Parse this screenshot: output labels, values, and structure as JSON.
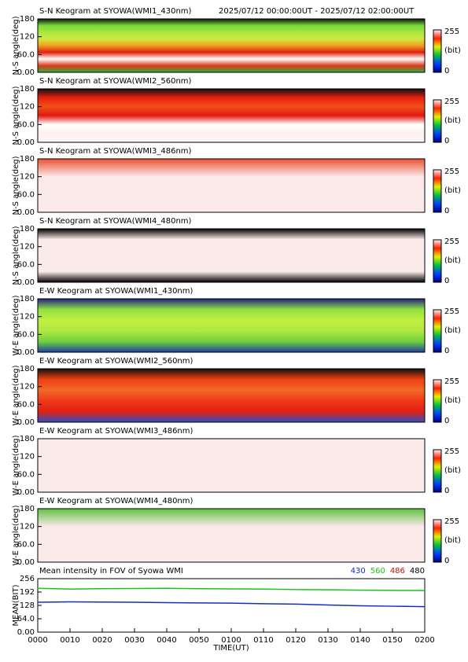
{
  "header": {
    "range": "2025/07/12 00:00:00UT - 2025/07/12 02:00:00UT"
  },
  "chart_data": [
    {
      "type": "keogram",
      "title": "S-N Keogram at SYOWA(WMI1_430nm)",
      "y_label": "N-S angle(deg)",
      "ylim": [
        0,
        180
      ],
      "yticks": [
        {
          "value": 0,
          "label": "0.00"
        },
        {
          "value": 60,
          "label": "60.0"
        },
        120,
        180
      ],
      "gradient": [
        "#101010",
        "#78d838",
        "#a8e840",
        "#d0e840",
        "#f0a020",
        "#e02010",
        "#ffffff",
        "#e03818",
        "#30b040"
      ],
      "colorbar": {
        "max": 255,
        "unit": "(bit)",
        "min": 0
      }
    },
    {
      "type": "keogram",
      "title": "S-N Keogram at SYOWA(WMI2_560nm)",
      "y_label": "N-S angle(deg)",
      "ylim": [
        0,
        180
      ],
      "yticks": [
        {
          "value": 0,
          "label": "0.00"
        },
        {
          "value": 60,
          "label": "60.0"
        },
        120,
        180
      ],
      "gradient": [
        "#101010",
        "#e82010",
        "#f05018",
        "#e01810",
        "#ffffff",
        "#fff0f0",
        "#fff6f6"
      ],
      "colorbar": {
        "max": 255,
        "unit": "(bit)",
        "min": 0
      }
    },
    {
      "type": "keogram",
      "title": "S-N Keogram at SYOWA(WMI3_486nm)",
      "y_label": "N-S angle(deg)",
      "ylim": [
        0,
        180
      ],
      "yticks": [
        {
          "value": 0,
          "label": "0.00"
        },
        {
          "value": 60,
          "label": "60.0"
        },
        120,
        180
      ],
      "gradient": [
        "#e85030",
        "#fbe8e8",
        "#fbeaea",
        "#fbeaea"
      ],
      "colorbar": {
        "max": 255,
        "unit": "(bit)",
        "min": 0
      }
    },
    {
      "type": "keogram",
      "title": "S-N Keogram at SYOWA(WMI4_480nm)",
      "y_label": "N-S angle(deg)",
      "ylim": [
        0,
        180
      ],
      "yticks": [
        {
          "value": 0,
          "label": "0.00"
        },
        {
          "value": 60,
          "label": "60.0"
        },
        120,
        180
      ],
      "gradient": [
        "#000000",
        "#fbeaea",
        "#fbeaea",
        "#fbeaea",
        "#fbeaea",
        "#000000"
      ],
      "colorbar": {
        "max": 255,
        "unit": "(bit)",
        "min": 0
      }
    },
    {
      "type": "keogram",
      "title": "E-W Keogram at SYOWA(WMI1_430nm)",
      "y_label": "W-E angle(deg)",
      "ylim": [
        0,
        180
      ],
      "yticks": [
        {
          "value": 0,
          "label": "0.00"
        },
        {
          "value": 60,
          "label": "60.0"
        },
        120,
        180
      ],
      "gradient": [
        "#202080",
        "#90e040",
        "#c0f040",
        "#b0e840",
        "#70d040",
        "#2040a0"
      ],
      "colorbar": {
        "max": 255,
        "unit": "(bit)",
        "min": 0
      }
    },
    {
      "type": "keogram",
      "title": "E-W Keogram at SYOWA(WMI2_560nm)",
      "y_label": "W-E angle(deg)",
      "ylim": [
        0,
        180
      ],
      "yticks": [
        {
          "value": 0,
          "label": "0.00"
        },
        {
          "value": 60,
          "label": "60.0"
        },
        120,
        180
      ],
      "gradient": [
        "#101010",
        "#f04010",
        "#f06828",
        "#f03818",
        "#e02010",
        "#3050c0"
      ],
      "colorbar": {
        "max": 255,
        "unit": "(bit)",
        "min": 0
      }
    },
    {
      "type": "keogram",
      "title": "E-W Keogram at SYOWA(WMI3_486nm)",
      "y_label": "W-E angle(deg)",
      "ylim": [
        0,
        180
      ],
      "yticks": [
        {
          "value": 0,
          "label": "0.00"
        },
        {
          "value": 60,
          "label": "60.0"
        },
        120,
        180
      ],
      "gradient": [
        "#fbeaea",
        "#fbeaea"
      ],
      "colorbar": {
        "max": 255,
        "unit": "(bit)",
        "min": 0
      }
    },
    {
      "type": "keogram",
      "title": "E-W Keogram at SYOWA(WMI4_480nm)",
      "y_label": "W-E angle(deg)",
      "ylim": [
        0,
        180
      ],
      "yticks": [
        {
          "value": 0,
          "label": "0.00"
        },
        {
          "value": 60,
          "label": "60.0"
        },
        120,
        180
      ],
      "gradient": [
        "#60c040",
        "#fbeaea",
        "#fbeaea",
        "#fbeaea"
      ],
      "colorbar": {
        "max": 255,
        "unit": "(bit)",
        "min": 0
      }
    },
    {
      "type": "line",
      "title": "Mean intensity in FOV of Syowa WMI",
      "y_label": "MEAN(BIT)",
      "x_label": "TIME(UT)",
      "x": [
        0,
        10,
        20,
        30,
        40,
        50,
        60,
        70,
        80,
        90,
        100,
        110,
        120
      ],
      "xlim": [
        0,
        120
      ],
      "xticks": [
        {
          "value": 0,
          "label": "0000"
        },
        {
          "value": 10,
          "label": "0010"
        },
        {
          "value": 20,
          "label": "0020"
        },
        {
          "value": 30,
          "label": "0030"
        },
        {
          "value": 40,
          "label": "0040"
        },
        {
          "value": 50,
          "label": "0050"
        },
        {
          "value": 60,
          "label": "0100"
        },
        {
          "value": 70,
          "label": "0110"
        },
        {
          "value": 80,
          "label": "0120"
        },
        {
          "value": 90,
          "label": "0130"
        },
        {
          "value": 100,
          "label": "0140"
        },
        {
          "value": 110,
          "label": "0150"
        },
        {
          "value": 120,
          "label": "0200"
        }
      ],
      "ylim": [
        0,
        256
      ],
      "yticks": [
        {
          "value": 0,
          "label": "0.00"
        },
        {
          "value": 64,
          "label": "64.0"
        },
        128,
        192,
        256
      ],
      "series": [
        {
          "name": "430",
          "color": "#1030c0",
          "values": [
            143,
            145,
            144,
            143,
            141,
            140,
            139,
            136,
            134,
            130,
            126,
            124,
            122
          ]
        },
        {
          "name": "560",
          "color": "#20c020",
          "values": [
            210,
            206,
            208,
            209,
            210,
            208,
            207,
            206,
            204,
            203,
            201,
            200,
            199
          ]
        },
        {
          "name": "486",
          "color": "#c01010",
          "values": [
            null,
            null,
            null,
            null,
            null,
            null,
            null,
            null,
            null,
            null,
            null,
            null,
            null
          ]
        },
        {
          "name": "480",
          "color": "#000000",
          "values": [
            null,
            null,
            null,
            null,
            null,
            null,
            null,
            null,
            null,
            null,
            null,
            null,
            null
          ]
        }
      ]
    }
  ]
}
